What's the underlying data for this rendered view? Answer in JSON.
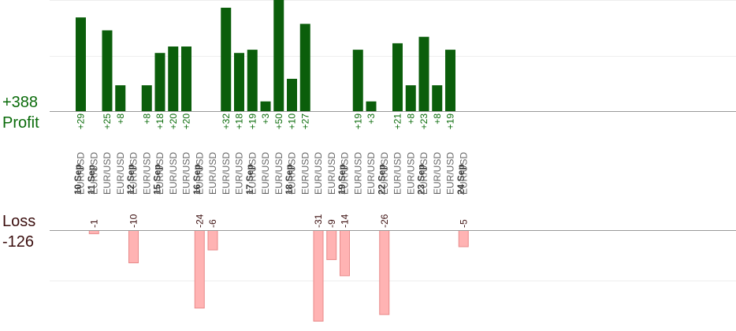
{
  "summary": {
    "profit_total": "+388",
    "profit_label": "Profit",
    "loss_label": "Loss",
    "loss_total": "-126"
  },
  "colors": {
    "profit_bar": "#0b5e0b",
    "profit_text": "#0a6b0a",
    "loss_bar": "#ffb3b3",
    "loss_bar_edge": "#e88a8a",
    "loss_text": "#3a0d0d",
    "axis": "#999999",
    "grid": "#eeeeee"
  },
  "chart_data": {
    "type": "bar",
    "pair": "EUR/USD",
    "days": [
      {
        "date": "10 Sep",
        "trades": [
          29
        ]
      },
      {
        "date": "11 Sep",
        "trades": [
          -1,
          25,
          8
        ]
      },
      {
        "date": "12 Sep",
        "trades": [
          -10,
          8
        ]
      },
      {
        "date": "15 Sep",
        "trades": [
          18,
          20,
          20
        ]
      },
      {
        "date": "16 Sep",
        "trades": [
          -24,
          -6,
          32,
          18
        ]
      },
      {
        "date": "17 Sep",
        "trades": [
          19,
          3,
          50
        ]
      },
      {
        "date": "18 Sep",
        "trades": [
          10,
          27,
          -31,
          -9
        ]
      },
      {
        "date": "19 Sep",
        "trades": [
          -14,
          19,
          3
        ]
      },
      {
        "date": "22 Sep",
        "trades": [
          -26,
          21,
          8
        ]
      },
      {
        "date": "23 Sep",
        "trades": [
          23,
          8,
          19
        ]
      },
      {
        "date": "24 Sep",
        "trades": [
          -5
        ]
      }
    ]
  }
}
